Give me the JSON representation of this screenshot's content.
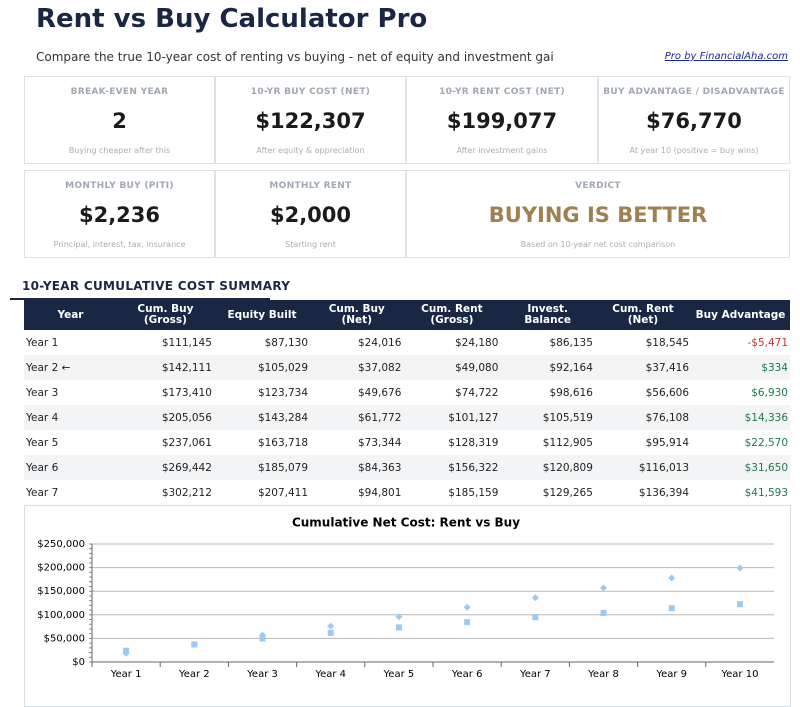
{
  "header": {
    "title": "Rent vs Buy Calculator Pro",
    "subtitle": "Compare the true 10-year cost of renting vs buying - net of equity and investment gai",
    "link": "Pro by FinancialAha.com"
  },
  "cards": [
    {
      "label": "BREAK-EVEN YEAR",
      "value": "2",
      "note": "Buying cheaper after this"
    },
    {
      "label": "10-YR BUY COST (NET)",
      "value": "$122,307",
      "note": "After equity & appreciation"
    },
    {
      "label": "10-YR RENT COST (NET)",
      "value": "$199,077",
      "note": "After investment gains"
    },
    {
      "label": "BUY ADVANTAGE / DISADVANTAGE",
      "value": "$76,770",
      "note": "At year 10 (positive = buy wins)"
    },
    {
      "label": "MONTHLY BUY (PITI)",
      "value": "$2,236",
      "note": "Principal, interest, tax, insurance"
    },
    {
      "label": "MONTHLY RENT",
      "value": "$2,000",
      "note": "Starting rent"
    },
    {
      "label": "VERDICT",
      "value": "BUYING IS BETTER",
      "note": "Based on 10-year net cost comparison"
    }
  ],
  "table": {
    "title": "10-YEAR CUMULATIVE COST SUMMARY",
    "columns": [
      "Year",
      "Cum. Buy (Gross)",
      "Equity Built",
      "Cum. Buy (Net)",
      "Cum. Rent (Gross)",
      "Invest. Balance",
      "Cum. Rent (Net)",
      "Buy Advantage"
    ],
    "rows": [
      [
        "Year 1",
        "$111,145",
        "$87,130",
        "$24,016",
        "$24,180",
        "$86,135",
        "$18,545",
        "-$5,471"
      ],
      [
        "Year 2 ←",
        "$142,111",
        "$105,029",
        "$37,082",
        "$49,080",
        "$92,164",
        "$37,416",
        "$334"
      ],
      [
        "Year 3",
        "$173,410",
        "$123,734",
        "$49,676",
        "$74,722",
        "$98,616",
        "$56,606",
        "$6,930"
      ],
      [
        "Year 4",
        "$205,056",
        "$143,284",
        "$61,772",
        "$101,127",
        "$105,519",
        "$76,108",
        "$14,336"
      ],
      [
        "Year 5",
        "$237,061",
        "$163,718",
        "$73,344",
        "$128,319",
        "$112,905",
        "$95,914",
        "$22,570"
      ],
      [
        "Year 6",
        "$269,442",
        "$185,079",
        "$84,363",
        "$156,322",
        "$120,809",
        "$116,013",
        "$31,650"
      ],
      [
        "Year 7",
        "$302,212",
        "$207,411",
        "$94,801",
        "$185,159",
        "$129,265",
        "$136,394",
        "$41,593"
      ]
    ]
  },
  "chart": {
    "type": "scatter",
    "title": "Cumulative Net Cost: Rent vs Buy",
    "categories": [
      "Year 1",
      "Year 2",
      "Year 3",
      "Year 4",
      "Year 5",
      "Year 6",
      "Year 7",
      "Year 8",
      "Year 9",
      "Year 10"
    ],
    "series": [
      {
        "marker": "diamond",
        "color": "#9ccaf0",
        "values": [
          18545,
          37416,
          56606,
          76108,
          95914,
          116013,
          136394,
          157000,
          178000,
          199077
        ]
      },
      {
        "marker": "square",
        "color": "#9ccaf0",
        "values": [
          24016,
          37082,
          49676,
          61772,
          73344,
          84363,
          94801,
          104000,
          114000,
          122307
        ]
      }
    ],
    "ylim": [
      0,
      250000
    ],
    "yticks": [
      {
        "value": 0,
        "label": "$0"
      },
      {
        "value": 50000,
        "label": "$50,000"
      },
      {
        "value": 100000,
        "label": "$100,000"
      },
      {
        "value": 150000,
        "label": "$150,000"
      },
      {
        "value": 200000,
        "label": "$200,000"
      },
      {
        "value": 250000,
        "label": "$250,000"
      }
    ],
    "grid": true
  }
}
